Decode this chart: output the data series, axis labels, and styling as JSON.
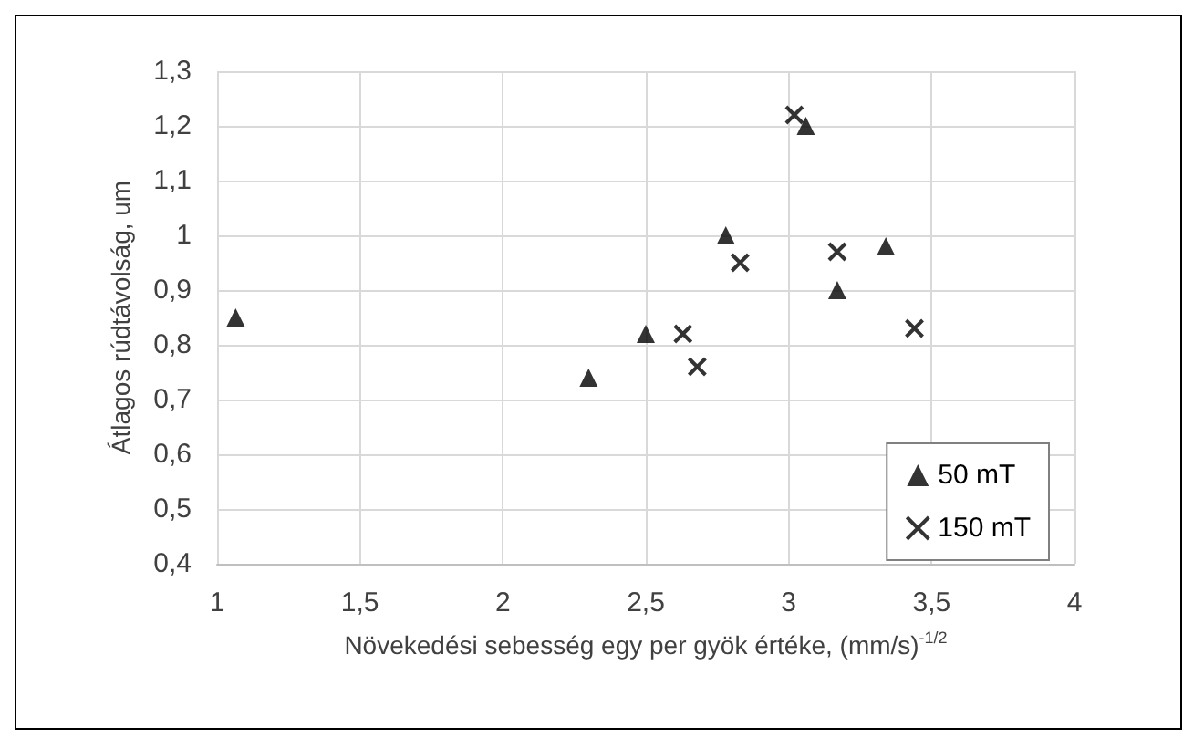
{
  "chart_data": {
    "type": "scatter",
    "xlabel": "Növekedési sebesség egy per gyök értéke, (mm/s)$^{-1/2}$",
    "ylabel": "Átlagos rúdtávolság, um",
    "xlim": [
      1,
      4
    ],
    "xticks": [
      1,
      {
        "value": 1.5,
        "label": "1,5"
      },
      2,
      {
        "value": 2.5,
        "label": "2,5"
      },
      3,
      {
        "value": 3.5,
        "label": "3,5"
      },
      4
    ],
    "ylim": [
      0.4,
      1.3
    ],
    "yticks": [
      {
        "value": 0.4,
        "label": "0,4"
      },
      {
        "value": 0.5,
        "label": "0,5"
      },
      {
        "value": 0.6,
        "label": "0,6"
      },
      {
        "value": 0.7,
        "label": "0,7"
      },
      {
        "value": 0.8,
        "label": "0,8"
      },
      {
        "value": 0.9,
        "label": "0,9"
      },
      {
        "value": 1,
        "label": "1"
      },
      {
        "value": 1.1,
        "label": "1,1"
      },
      {
        "value": 1.2,
        "label": "1,2"
      },
      {
        "value": 1.3,
        "label": "1,3"
      }
    ],
    "grid": true,
    "legend": "bottom right",
    "series": [
      {
        "name": "50 mT",
        "color": "#000000",
        "marker": "triangle",
        "x": [
          1.065,
          2.3,
          2.5,
          2.78,
          3.06,
          3.17,
          3.34
        ],
        "values": [
          0.85,
          0.74,
          0.82,
          1.0,
          1.2,
          0.9,
          0.98
        ]
      },
      {
        "name": "150 mT",
        "color": "#000000",
        "marker": "cross",
        "x": [
          2.63,
          2.68,
          2.83,
          3.02,
          3.17,
          3.44
        ],
        "values": [
          0.82,
          0.76,
          0.95,
          1.22,
          0.97,
          0.83
        ]
      }
    ]
  }
}
